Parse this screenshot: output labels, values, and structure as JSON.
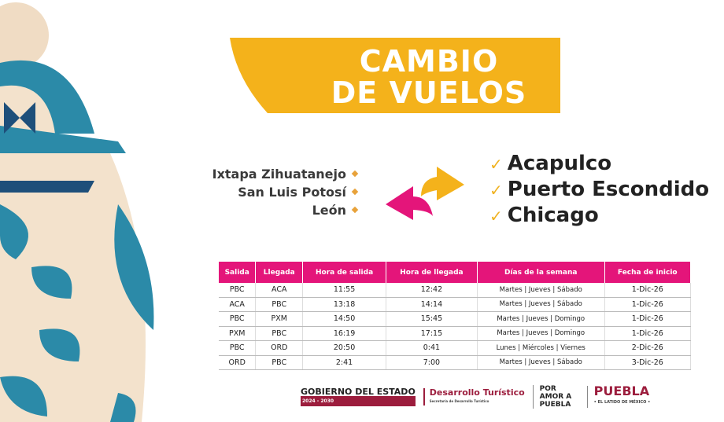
{
  "title": {
    "line1": "CAMBIO",
    "line2": "DE VUELOS"
  },
  "removed": [
    "Ixtapa Zihuatanejo",
    "San Luis Potosí",
    "León"
  ],
  "added": [
    "Acapulco",
    "Puerto Escondido",
    "Chicago"
  ],
  "check": "✓",
  "table": {
    "headers": [
      "Salida",
      "Llegada",
      "Hora de salida",
      "Hora de llegada",
      "Días de la semana",
      "Fecha de inicio"
    ],
    "rows": [
      [
        "PBC",
        "ACA",
        "11:55",
        "12:42",
        "Martes | Jueves | Sábado",
        "1-Dic-26"
      ],
      [
        "ACA",
        "PBC",
        "13:18",
        "14:14",
        "Martes | Jueves | Sábado",
        "1-Dic-26"
      ],
      [
        "PBC",
        "PXM",
        "14:50",
        "15:45",
        "Martes | Jueves | Domingo",
        "1-Dic-26"
      ],
      [
        "PXM",
        "PBC",
        "16:19",
        "17:15",
        "Martes | Jueves | Domingo",
        "1-Dic-26"
      ],
      [
        "PBC",
        "ORD",
        "20:50",
        "0:41",
        "Lunes | Miércoles | Viernes",
        "2-Dic-26"
      ],
      [
        "ORD",
        "PBC",
        "2:41",
        "7:00",
        "Martes | Jueves | Sábado",
        "3-Dic-26"
      ]
    ]
  },
  "footer": {
    "gov": "GOBIERNO DEL ESTADO",
    "period": "2024 - 2030",
    "dept": "Desarrollo Turístico",
    "dept_sub": "Secretaría de Desarrollo Turístico",
    "slogan": "POR AMOR A PUEBLA",
    "brand": "PUEBLA",
    "brand_sub": "• EL LATIDO DE MÉXICO •"
  }
}
